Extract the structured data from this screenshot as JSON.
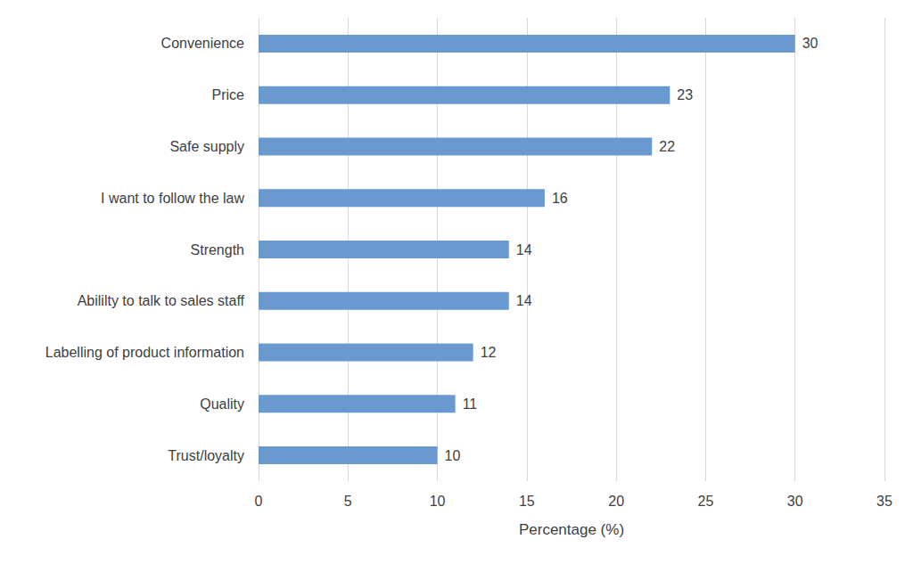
{
  "chart_data": {
    "type": "bar",
    "orientation": "horizontal",
    "categories": [
      "Convenience",
      "Price",
      "Safe supply",
      "I want to follow the law",
      "Strength",
      "Abililty to talk to sales staff",
      "Labelling of product information",
      "Quality",
      "Trust/loyalty"
    ],
    "values": [
      30,
      23,
      22,
      16,
      14,
      14,
      12,
      11,
      10
    ],
    "color": "#6a99d0",
    "xlabel": "Percentage (%)",
    "xlim": [
      0,
      35
    ],
    "xticks": [
      0,
      5,
      10,
      15,
      20,
      25,
      30,
      35
    ],
    "grid": true,
    "data_labels": true
  }
}
